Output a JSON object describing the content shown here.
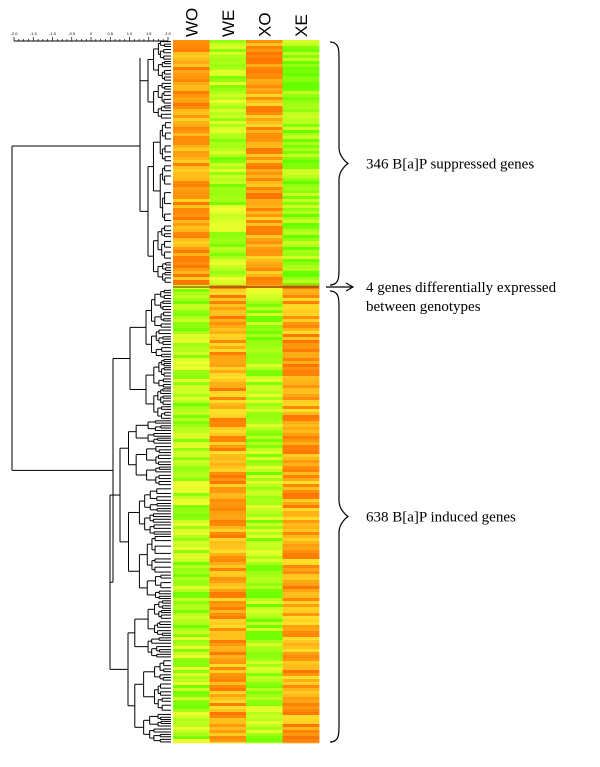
{
  "chart_data": {
    "type": "heatmap",
    "columns": [
      "WO",
      "WE",
      "XO",
      "XE"
    ],
    "scale_ticks": [
      "-2.0",
      "-1.5",
      "-1.0",
      "-0.5",
      "0",
      "0.5",
      "1.0",
      "1.5",
      "2.0"
    ],
    "colormap": {
      "low": "#66ff00",
      "mid": "#ffff33",
      "high": "#ff7700"
    },
    "groups": [
      {
        "label": "346 B[a]P suppressed genes",
        "genes": 346,
        "profile": [
          0.85,
          0.25,
          0.85,
          0.15
        ]
      },
      {
        "label": "4 genes differentially expressed between genotypes",
        "genes": 4,
        "profile": [
          0.25,
          0.95,
          0.75,
          0.95
        ]
      },
      {
        "label": "638 B[a]P induced genes",
        "genes": 638,
        "profile": [
          0.25,
          0.82,
          0.22,
          0.82
        ]
      }
    ],
    "annotations": [
      {
        "id": "suppressed",
        "lines": [
          "346 B[a]P suppressed genes"
        ]
      },
      {
        "id": "differential",
        "lines": [
          "4 genes differentially expressed",
          "between genotypes"
        ]
      },
      {
        "id": "induced",
        "lines": [
          "638 B[a]P induced genes"
        ]
      }
    ]
  }
}
